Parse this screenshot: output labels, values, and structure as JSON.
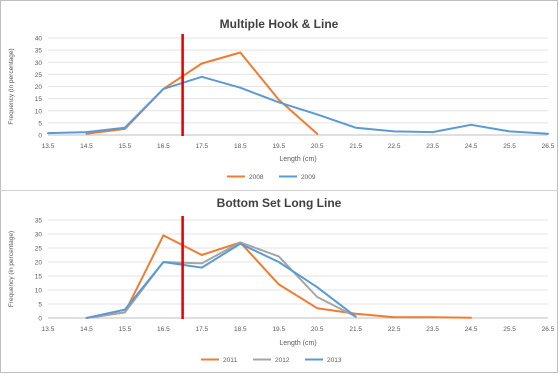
{
  "chart_data": [
    {
      "type": "line",
      "title": "Multiple Hook & Line",
      "xlabel": "Length  (cm)",
      "ylabel": "Frequency (in percentage)",
      "ylim": [
        0,
        40
      ],
      "yticks": [
        0,
        5,
        10,
        15,
        20,
        25,
        30,
        35,
        40
      ],
      "categories": [
        "13.5",
        "14.5",
        "15.5",
        "16.5",
        "17.5",
        "18.5",
        "19.5",
        "20.5",
        "21.5",
        "22.5",
        "23.5",
        "24.5",
        "25.5",
        "26.5"
      ],
      "series": [
        {
          "name": "2008",
          "color": "#ED7D31",
          "values": [
            null,
            0.5,
            2.5,
            19,
            29.5,
            34,
            14.5,
            0.5,
            null,
            null,
            null,
            null,
            null,
            null
          ]
        },
        {
          "name": "2009",
          "color": "#5B9BD5",
          "values": [
            0.8,
            1.2,
            3,
            19,
            24,
            19.5,
            13.5,
            8.5,
            3,
            1.5,
            1.2,
            4.2,
            1.5,
            0.5
          ]
        }
      ],
      "reference_line": {
        "x": 17,
        "color": "#E00000"
      },
      "grid": true,
      "legend": "bottom"
    },
    {
      "type": "line",
      "title": "Bottom Set Long Line",
      "xlabel": "Length  (cm)",
      "ylabel": "Frequency (in percentage)",
      "ylim": [
        0,
        35
      ],
      "yticks": [
        0,
        5,
        10,
        15,
        20,
        25,
        30,
        35
      ],
      "categories": [
        "13.5",
        "14.5",
        "15.5",
        "16.5",
        "17.5",
        "18.5",
        "19.5",
        "20.5",
        "21.5",
        "22.5",
        "23.5",
        "24.5",
        "25.5",
        "26.5"
      ],
      "series": [
        {
          "name": "2011",
          "color": "#ED7D31",
          "values": [
            null,
            0,
            2,
            29.5,
            22.5,
            27,
            12,
            3.5,
            1.5,
            0.3,
            0.3,
            0.1,
            null,
            null
          ]
        },
        {
          "name": "2012",
          "color": "#A5A5A5",
          "values": [
            null,
            0,
            2,
            20,
            19.5,
            27,
            22,
            7.5,
            0.5,
            null,
            null,
            null,
            null,
            null
          ]
        },
        {
          "name": "2013",
          "color": "#5B9BD5",
          "values": [
            null,
            0,
            3,
            20,
            18,
            26.5,
            20,
            11,
            0.5,
            null,
            null,
            null,
            null,
            null
          ]
        }
      ],
      "reference_line": {
        "x": 17,
        "color": "#E00000"
      },
      "grid": true,
      "legend": "bottom"
    }
  ]
}
